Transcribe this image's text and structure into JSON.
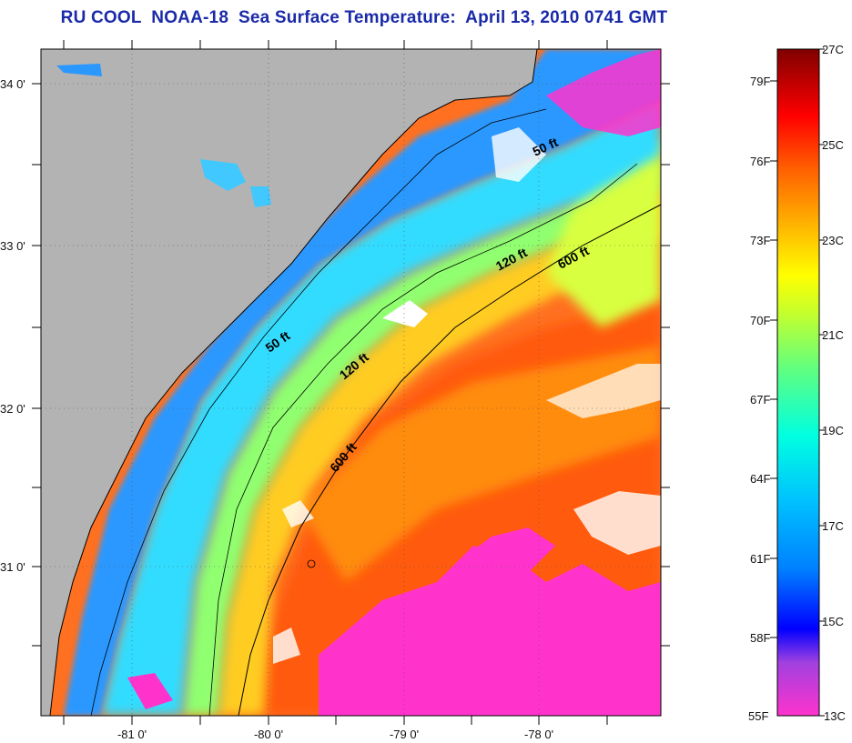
{
  "title": "RU COOL  NOAA-18  Sea Surface Temperature:  April 13, 2010 0741 GMT",
  "map": {
    "lat_labels": [
      "34 0'",
      "33 0'",
      "32 0'",
      "31 0'"
    ],
    "lon_labels": [
      "-81 0'",
      "-80 0'",
      "-79 0'",
      "-78 0'"
    ],
    "depth_contour_labels": [
      "50 ft",
      "50 ft",
      "120 ft",
      "120 ft",
      "600 ft",
      "600 ft"
    ],
    "colors": {
      "land": "#b3b3b3",
      "cloud_flag": "#ff33cc",
      "frame": "#000000"
    }
  },
  "colorbar": {
    "fahrenheit_labels": [
      "79F",
      "76F",
      "73F",
      "70F",
      "67F",
      "64F",
      "61F",
      "58F",
      "55F"
    ],
    "celsius_labels": [
      "27C",
      "25C",
      "23C",
      "21C",
      "19C",
      "17C",
      "15C",
      "13C"
    ]
  }
}
